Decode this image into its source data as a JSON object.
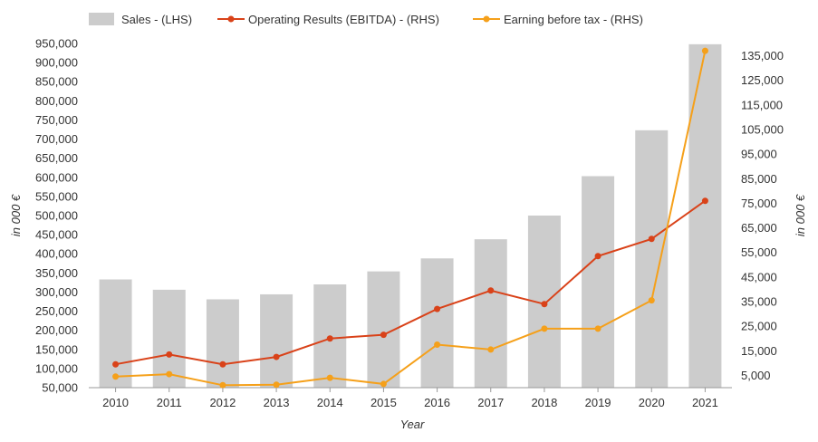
{
  "chart_data": {
    "type": "bar+line",
    "categories": [
      "2010",
      "2011",
      "2012",
      "2013",
      "2014",
      "2015",
      "2016",
      "2017",
      "2018",
      "2019",
      "2020",
      "2021"
    ],
    "bar_series": {
      "name": "Sales - (LHS)",
      "axis": "left",
      "color": "#cccccc",
      "values": [
        333000,
        306000,
        281000,
        294000,
        320000,
        354000,
        388000,
        438000,
        500000,
        603000,
        723000,
        948000
      ]
    },
    "line_series": [
      {
        "name": "Operating Results (EBITDA) - (RHS)",
        "axis": "right",
        "color": "#d94219",
        "values": [
          9500,
          13500,
          9500,
          12500,
          20000,
          21500,
          32000,
          39500,
          34000,
          53500,
          60500,
          76000
        ]
      },
      {
        "name": "Earning before tax - (RHS)",
        "axis": "right",
        "color": "#f5a01a",
        "values": [
          4500,
          5500,
          1000,
          1200,
          4000,
          1500,
          17500,
          15500,
          24000,
          24000,
          35500,
          137000
        ]
      }
    ],
    "left_axis": {
      "min": 50000,
      "max": 950000,
      "ticks": [
        50000,
        100000,
        150000,
        200000,
        250000,
        300000,
        350000,
        400000,
        450000,
        500000,
        550000,
        600000,
        650000,
        700000,
        750000,
        800000,
        850000,
        900000,
        950000
      ],
      "tick_labels": [
        "50,000",
        "100,000",
        "150,000",
        "200,000",
        "250,000",
        "300,000",
        "350,000",
        "400,000",
        "450,000",
        "500,000",
        "550,000",
        "600,000",
        "650,000",
        "700,000",
        "750,000",
        "800,000",
        "850,000",
        "900,000",
        "950,000"
      ],
      "label": "in 000 €"
    },
    "right_axis": {
      "min": 0,
      "max": 140000,
      "ticks": [
        5000,
        15000,
        25000,
        35000,
        45000,
        55000,
        65000,
        75000,
        85000,
        95000,
        105000,
        115000,
        125000,
        135000
      ],
      "tick_labels": [
        "5,000",
        "15,000",
        "25,000",
        "35,000",
        "45,000",
        "55,000",
        "65,000",
        "75,000",
        "85,000",
        "95,000",
        "105,000",
        "115,000",
        "125,000",
        "135,000"
      ],
      "label": "in 000 €"
    },
    "xlabel": "Year",
    "legend_position": "top-left",
    "grid": false
  }
}
